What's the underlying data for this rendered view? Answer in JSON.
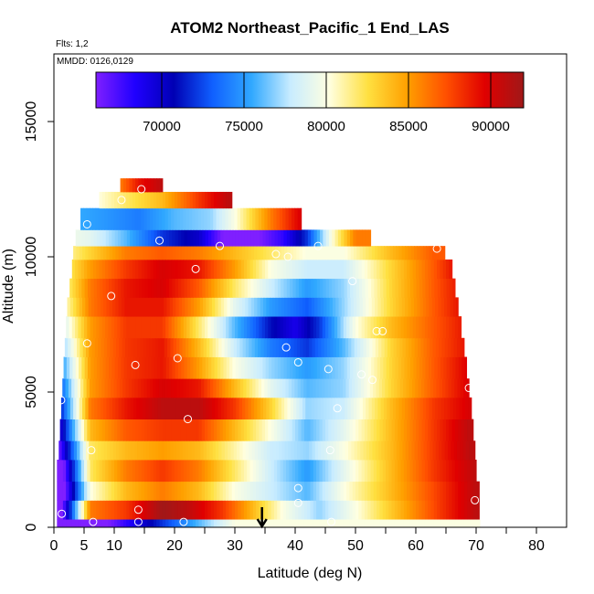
{
  "chart_data": {
    "type": "heatmap",
    "title": "ATOM2 Northeast_Pacific_1 End_LAS",
    "flights_label": "Flts: 1,2",
    "mmdd_label": "MMDD: 0126,0129",
    "xlabel": "Latitude (deg N)",
    "ylabel": "Altitude (m)",
    "xlim": [
      0,
      85
    ],
    "ylim": [
      0,
      17500
    ],
    "x_ticks": [
      0,
      5,
      10,
      20,
      30,
      40,
      50,
      60,
      70,
      80
    ],
    "x_minor_ticks": [
      15,
      25,
      35,
      45,
      55,
      65,
      75
    ],
    "y_ticks": [
      0,
      5000,
      10000,
      15000
    ],
    "grid": false,
    "colorbar": {
      "position": "top",
      "min": 66000,
      "max": 92000,
      "ticks": [
        70000,
        75000,
        80000,
        85000,
        90000
      ],
      "colors": [
        "#7f1fff",
        "#2000ff",
        "#0000b4",
        "#1060ff",
        "#30a8ff",
        "#c8ecff",
        "#ffffe0",
        "#ffe040",
        "#ffa000",
        "#ff5000",
        "#e00000",
        "#a01818"
      ]
    },
    "arrow_x": 34.5,
    "arrow_label": "",
    "rows": [
      {
        "alt": 0,
        "x0": 0.5,
        "x1": 70.6,
        "band": [
          [
            0,
            60000
          ],
          [
            30,
            80000
          ]
        ]
      },
      {
        "alt": 300,
        "x0": 0.5,
        "x1": 70.5,
        "band": [
          [
            0,
            60000
          ],
          [
            6,
            86000
          ],
          [
            12,
            88000
          ],
          [
            18,
            92000
          ],
          [
            22,
            91000
          ],
          [
            28,
            88000
          ],
          [
            33,
            84000
          ],
          [
            38,
            80000
          ],
          [
            44,
            77000
          ],
          [
            50,
            80000
          ],
          [
            57,
            84000
          ],
          [
            64,
            88000
          ],
          [
            70,
            91000
          ]
        ]
      },
      {
        "alt": 1000,
        "x0": 0.5,
        "x1": 70.5,
        "band": [
          [
            0,
            60000
          ],
          [
            6,
            80000
          ],
          [
            12,
            84000
          ],
          [
            18,
            86000
          ],
          [
            24,
            84000
          ],
          [
            30,
            80000
          ],
          [
            36,
            78000
          ],
          [
            42,
            76000
          ],
          [
            48,
            80000
          ],
          [
            56,
            84000
          ],
          [
            64,
            88000
          ],
          [
            70,
            91000
          ]
        ]
      },
      {
        "alt": 1700,
        "x0": 0.5,
        "x1": 70.0,
        "band": [
          [
            0,
            60000
          ],
          [
            6,
            82000
          ],
          [
            12,
            86000
          ],
          [
            18,
            88000
          ],
          [
            24,
            86000
          ],
          [
            30,
            82000
          ],
          [
            36,
            78000
          ],
          [
            42,
            75000
          ],
          [
            48,
            79000
          ],
          [
            56,
            84000
          ],
          [
            63,
            88000
          ],
          [
            70,
            91000
          ]
        ]
      },
      {
        "alt": 2500,
        "x0": 0.8,
        "x1": 69.8,
        "band": [
          [
            0,
            64000
          ],
          [
            6,
            82000
          ],
          [
            12,
            84000
          ],
          [
            18,
            85000
          ],
          [
            24,
            84000
          ],
          [
            30,
            81000
          ],
          [
            36,
            78000
          ],
          [
            42,
            77000
          ],
          [
            48,
            80000
          ],
          [
            56,
            84000
          ],
          [
            63,
            88000
          ],
          [
            69,
            91000
          ]
        ]
      },
      {
        "alt": 3200,
        "x0": 1.0,
        "x1": 69.5,
        "band": [
          [
            0,
            66000
          ],
          [
            6,
            84000
          ],
          [
            12,
            87000
          ],
          [
            18,
            88000
          ],
          [
            24,
            88000
          ],
          [
            30,
            84000
          ],
          [
            36,
            80000
          ],
          [
            42,
            76000
          ],
          [
            48,
            79000
          ],
          [
            56,
            84000
          ],
          [
            63,
            88000
          ],
          [
            69,
            91000
          ]
        ]
      },
      {
        "alt": 4000,
        "x0": 1.2,
        "x1": 69.2,
        "band": [
          [
            0,
            68000
          ],
          [
            6,
            86000
          ],
          [
            12,
            89000
          ],
          [
            18,
            91000
          ],
          [
            24,
            91000
          ],
          [
            30,
            88000
          ],
          [
            36,
            83000
          ],
          [
            42,
            77000
          ],
          [
            48,
            78000
          ],
          [
            56,
            84000
          ],
          [
            63,
            88000
          ],
          [
            69,
            90000
          ]
        ]
      },
      {
        "alt": 4800,
        "x0": 1.4,
        "x1": 68.8,
        "band": [
          [
            0,
            70000
          ],
          [
            6,
            85000
          ],
          [
            12,
            88000
          ],
          [
            18,
            90000
          ],
          [
            24,
            89000
          ],
          [
            30,
            84000
          ],
          [
            36,
            79000
          ],
          [
            42,
            76000
          ],
          [
            48,
            77000
          ],
          [
            56,
            83000
          ],
          [
            63,
            87000
          ],
          [
            69,
            90000
          ]
        ]
      },
      {
        "alt": 5500,
        "x0": 1.6,
        "x1": 68.4,
        "band": [
          [
            0,
            72000
          ],
          [
            6,
            85000
          ],
          [
            12,
            88000
          ],
          [
            18,
            89000
          ],
          [
            24,
            85000
          ],
          [
            30,
            80000
          ],
          [
            36,
            77000
          ],
          [
            42,
            75000
          ],
          [
            48,
            77000
          ],
          [
            56,
            83000
          ],
          [
            63,
            87000
          ],
          [
            69,
            90000
          ]
        ]
      },
      {
        "alt": 6300,
        "x0": 1.8,
        "x1": 68.0,
        "band": [
          [
            0,
            74000
          ],
          [
            6,
            85000
          ],
          [
            12,
            88000
          ],
          [
            18,
            89000
          ],
          [
            24,
            84000
          ],
          [
            30,
            78000
          ],
          [
            36,
            74000
          ],
          [
            42,
            72000
          ],
          [
            48,
            76000
          ],
          [
            56,
            83000
          ],
          [
            63,
            87000
          ],
          [
            68,
            89000
          ]
        ]
      },
      {
        "alt": 7000,
        "x0": 2.0,
        "x1": 67.5,
        "band": [
          [
            0,
            76000
          ],
          [
            6,
            85000
          ],
          [
            12,
            88000
          ],
          [
            18,
            88000
          ],
          [
            24,
            82000
          ],
          [
            30,
            76000
          ],
          [
            36,
            71000
          ],
          [
            40,
            69000
          ],
          [
            44,
            72000
          ],
          [
            50,
            80000
          ],
          [
            56,
            84000
          ],
          [
            63,
            87000
          ],
          [
            68,
            89000
          ]
        ]
      },
      {
        "alt": 7800,
        "x0": 2.2,
        "x1": 67.0,
        "band": [
          [
            0,
            78000
          ],
          [
            6,
            86000
          ],
          [
            12,
            89000
          ],
          [
            18,
            89000
          ],
          [
            24,
            85000
          ],
          [
            30,
            79000
          ],
          [
            36,
            75000
          ],
          [
            42,
            73000
          ],
          [
            48,
            77000
          ],
          [
            56,
            83000
          ],
          [
            63,
            87000
          ],
          [
            67,
            89000
          ]
        ]
      },
      {
        "alt": 8500,
        "x0": 2.6,
        "x1": 66.5,
        "band": [
          [
            0,
            79000
          ],
          [
            6,
            86000
          ],
          [
            12,
            89000
          ],
          [
            18,
            90000
          ],
          [
            24,
            87000
          ],
          [
            30,
            82000
          ],
          [
            36,
            78000
          ],
          [
            42,
            75000
          ],
          [
            48,
            77000
          ],
          [
            56,
            83000
          ],
          [
            63,
            87000
          ],
          [
            67,
            89000
          ]
        ]
      },
      {
        "alt": 9200,
        "x0": 3.0,
        "x1": 66.0,
        "band": [
          [
            0,
            80000
          ],
          [
            6,
            85000
          ],
          [
            12,
            88000
          ],
          [
            18,
            90000
          ],
          [
            24,
            89000
          ],
          [
            30,
            85000
          ],
          [
            36,
            80000
          ],
          [
            42,
            78000
          ],
          [
            48,
            78000
          ],
          [
            56,
            83000
          ],
          [
            63,
            87000
          ],
          [
            66,
            89000
          ]
        ]
      },
      {
        "alt": 9900,
        "x0": 3.2,
        "x1": 64.8,
        "band": [
          [
            0,
            80000
          ],
          [
            6,
            83000
          ],
          [
            12,
            86000
          ],
          [
            18,
            87000
          ],
          [
            24,
            86000
          ],
          [
            30,
            84000
          ],
          [
            36,
            82000
          ],
          [
            42,
            80000
          ],
          [
            48,
            80000
          ],
          [
            56,
            84000
          ],
          [
            63,
            87000
          ]
        ]
      },
      {
        "alt": 10400,
        "x0": 3.6,
        "x1": 52.5,
        "band": [
          [
            0,
            80000
          ],
          [
            6,
            79000
          ],
          [
            12,
            76000
          ],
          [
            18,
            72000
          ],
          [
            24,
            70000
          ],
          [
            28,
            66000
          ],
          [
            34,
            66000
          ],
          [
            38,
            68000
          ],
          [
            42,
            72000
          ],
          [
            46,
            80000
          ],
          [
            50,
            86000
          ]
        ]
      },
      {
        "alt": 11000,
        "x0": 4.4,
        "x1": 41.0,
        "band": [
          [
            0,
            76000
          ],
          [
            8,
            75000
          ],
          [
            14,
            74000
          ],
          [
            20,
            76000
          ],
          [
            26,
            77000
          ],
          [
            30,
            80000
          ],
          [
            36,
            86000
          ],
          [
            41,
            90000
          ]
        ]
      },
      {
        "alt": 11800,
        "x0": 7.5,
        "x1": 29.5,
        "band": [
          [
            7,
            80000
          ],
          [
            12,
            82000
          ],
          [
            18,
            84000
          ],
          [
            24,
            88000
          ],
          [
            29,
            91000
          ]
        ]
      },
      {
        "alt": 12400,
        "x0": 11.0,
        "x1": 18.0,
        "band": [
          [
            11,
            86000
          ],
          [
            14,
            89000
          ],
          [
            18,
            91000
          ]
        ]
      }
    ],
    "top_alt": 12900,
    "points": [
      [
        14.5,
        12500
      ],
      [
        11.2,
        12100
      ],
      [
        5.5,
        11200
      ],
      [
        17.5,
        10600
      ],
      [
        27.5,
        10400
      ],
      [
        36.8,
        10100
      ],
      [
        38.8,
        10000
      ],
      [
        43.8,
        10400
      ],
      [
        63.5,
        10300
      ],
      [
        23.5,
        9550
      ],
      [
        49.5,
        9100
      ],
      [
        9.5,
        8550
      ],
      [
        5.5,
        6800
      ],
      [
        53.5,
        7250
      ],
      [
        54.5,
        7250
      ],
      [
        38.5,
        6650
      ],
      [
        20.5,
        6250
      ],
      [
        13.5,
        6000
      ],
      [
        40.5,
        6100
      ],
      [
        45.5,
        5850
      ],
      [
        51.0,
        5650
      ],
      [
        52.8,
        5450
      ],
      [
        68.8,
        5150
      ],
      [
        1.2,
        4700
      ],
      [
        47.0,
        4400
      ],
      [
        22.2,
        4000
      ],
      [
        6.2,
        2850
      ],
      [
        45.8,
        2850
      ],
      [
        40.5,
        1450
      ],
      [
        40.5,
        900
      ],
      [
        69.8,
        1000
      ],
      [
        14.0,
        650
      ],
      [
        6.5,
        200
      ],
      [
        14.0,
        200
      ],
      [
        21.5,
        200
      ],
      [
        46.0,
        200
      ],
      [
        1.3,
        500
      ]
    ]
  }
}
